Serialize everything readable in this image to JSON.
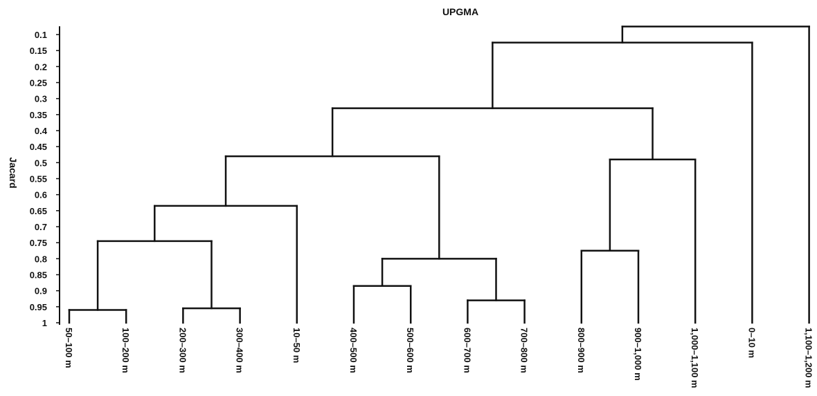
{
  "chart_data": {
    "type": "dendrogram",
    "title": "UPGMA",
    "ylabel": "Jacard",
    "ylim": [
      0.1,
      1
    ],
    "yticks": [
      "0.1",
      "0.15",
      "0.2",
      "0.25",
      "0.3",
      "0.35",
      "0.4",
      "0.45",
      "0.5",
      "0.55",
      "0.6",
      "0.65",
      "0.7",
      "0.75",
      "0.8",
      "0.85",
      "0.9",
      "0.95",
      "1"
    ],
    "leaves": [
      "50–100 m",
      "100–200 m",
      "200–300 m",
      "300–400 m",
      "10–50 m",
      "400–500 m",
      "500–600 m",
      "600–700 m",
      "700–800 m",
      "800–900 m",
      "900–1,000 m",
      "1,000–1,100 m",
      "0–10 m",
      "1,100–1,200 m"
    ],
    "merges": [
      {
        "a": "L0",
        "b": "L1",
        "similarity": 0.96
      },
      {
        "a": "L2",
        "b": "L3",
        "similarity": 0.955
      },
      {
        "a": "L5",
        "b": "L6",
        "similarity": 0.885
      },
      {
        "a": "L7",
        "b": "L8",
        "similarity": 0.93
      },
      {
        "a": "L9",
        "b": "L10",
        "similarity": 0.775
      },
      {
        "a": "M0",
        "b": "M1",
        "similarity": 0.745
      },
      {
        "a": "M3",
        "b": "M2",
        "similarity": 0.8
      },
      {
        "a": "M5",
        "b": "L4",
        "similarity": 0.635
      },
      {
        "a": "M4",
        "b": "L11",
        "similarity": 0.49
      },
      {
        "a": "M7",
        "b": "M6",
        "similarity": 0.48
      },
      {
        "a": "M9",
        "b": "M8",
        "similarity": 0.33
      },
      {
        "a": "M10",
        "b": "L12",
        "similarity": 0.125
      },
      {
        "a": "M11",
        "b": "L13",
        "similarity": 0.075
      }
    ]
  }
}
